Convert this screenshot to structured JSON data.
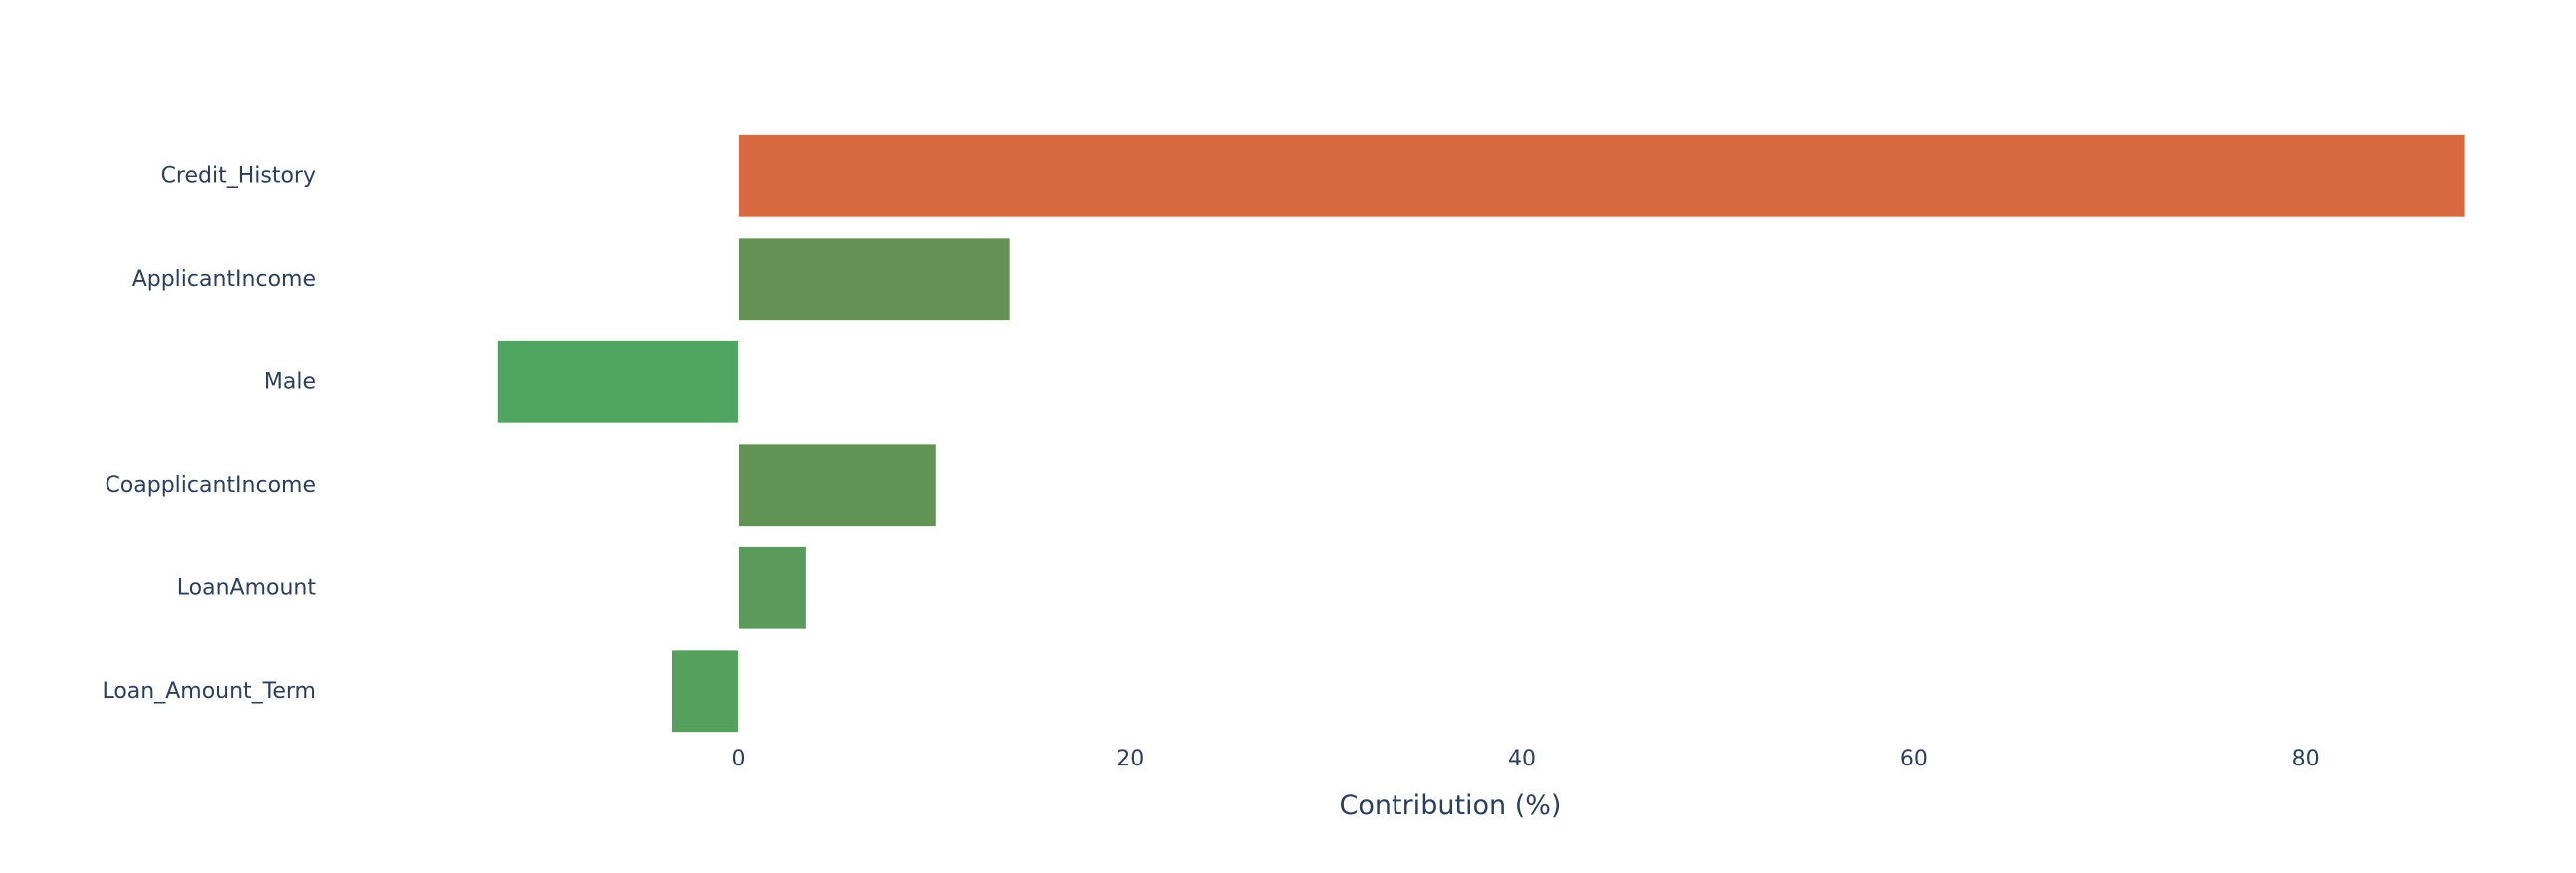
{
  "chart_data": {
    "type": "bar",
    "orientation": "horizontal",
    "categories": [
      "Credit_History",
      "ApplicantIncome",
      "Male",
      "CoapplicantIncome",
      "LoanAmount",
      "Loan_Amount_Term"
    ],
    "values": [
      88.1,
      13.9,
      -12.3,
      10.1,
      3.5,
      -3.4
    ],
    "bar_colors": [
      "#d96a40",
      "#659155",
      "#4fa55f",
      "#619354",
      "#5b9a5a",
      "#54a05c"
    ],
    "title": "",
    "xlabel": "Contribution (%)",
    "ylabel": "",
    "xlim": [
      -17.9,
      88.5
    ],
    "xticks": [
      0,
      20,
      40,
      60,
      80
    ],
    "grid": false,
    "legend": "none"
  }
}
